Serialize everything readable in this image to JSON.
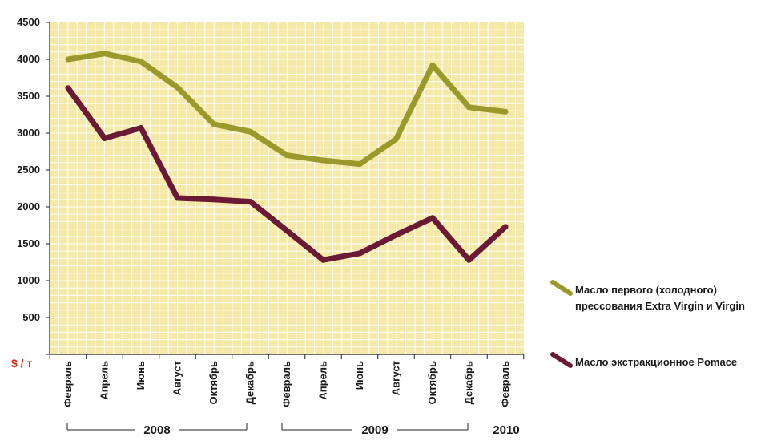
{
  "chart_data": {
    "type": "line",
    "categories": [
      "Февраль",
      "Апрель",
      "Июнь",
      "Август",
      "Октябрь",
      "Декабрь",
      "Февраль",
      "Апрель",
      "Июнь",
      "Август",
      "Октябрь",
      "Декабрь",
      "Февраль"
    ],
    "years": [
      "2008",
      "2009",
      "2010"
    ],
    "unit_label": "$ / т",
    "ylim": [
      0,
      4500
    ],
    "yticks": [
      0,
      500,
      1000,
      1500,
      2000,
      2500,
      3000,
      3500,
      4000,
      4500
    ],
    "series": [
      {
        "name": "Масло первого (холодного) прессования Extra Virgin и Virgin",
        "name_lines": [
          "Масло первого (холодного)",
          "прессования Extra Virgin и Virgin"
        ],
        "color": "#9a9a2c",
        "values": [
          4000,
          4080,
          3970,
          3620,
          3120,
          3020,
          2700,
          2630,
          2580,
          2920,
          3920,
          3350,
          3290
        ]
      },
      {
        "name": "Масло экстракционное Pomace",
        "name_lines": [
          "Масло экстракционное Pomace"
        ],
        "color": "#6a1a34",
        "values": [
          3610,
          2930,
          3070,
          2120,
          2100,
          2070,
          1680,
          1280,
          1370,
          1620,
          1850,
          1280,
          1730
        ]
      }
    ],
    "background": "#f5e9a8",
    "grid": true,
    "legend_position": "right"
  }
}
